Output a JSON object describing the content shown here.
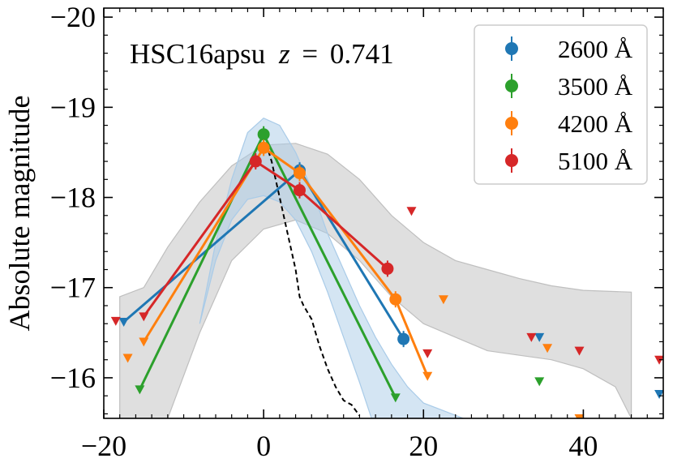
{
  "chart_data": {
    "type": "line",
    "title": "",
    "annotation": {
      "object": "HSC16apsu",
      "z_symbol": "z",
      "equals": "=",
      "z_value": "0.741"
    },
    "xlabel": "",
    "ylabel": "Absolute magnitude",
    "xlim": [
      -20,
      50
    ],
    "ylim": [
      -15.55,
      -20.1
    ],
    "y_inverted": true,
    "xticks": [
      -20,
      0,
      20,
      40
    ],
    "xtick_labels": [
      "−20",
      "0",
      "20",
      "40"
    ],
    "yticks": [
      -16,
      -17,
      -18,
      -19,
      -20
    ],
    "ytick_labels": [
      "−16",
      "−17",
      "−18",
      "−19",
      "−20"
    ],
    "grid": false,
    "legend": {
      "position": "top-right",
      "entries": [
        {
          "label": "2600 Å",
          "color": "#1f77b4"
        },
        {
          "label": "3500 Å",
          "color": "#2ca02c"
        },
        {
          "label": "4200 Å",
          "color": "#ff7f0e"
        },
        {
          "label": "5100 Å",
          "color": "#d62728"
        }
      ]
    },
    "series": [
      {
        "name": "2600 Å",
        "color": "#1f77b4",
        "detections": [
          [
            4.5,
            -18.3
          ],
          [
            17.5,
            -16.43
          ]
        ],
        "line": [
          [
            -17.5,
            -16.62
          ],
          [
            4.5,
            -18.3
          ],
          [
            17.5,
            -16.43
          ]
        ],
        "upper_limits": [
          [
            -17.5,
            -16.62
          ],
          [
            17.5,
            -16.43
          ],
          [
            34.5,
            -16.45
          ],
          [
            49.5,
            -15.82
          ]
        ]
      },
      {
        "name": "3500 Å",
        "color": "#2ca02c",
        "detections": [
          [
            0,
            -18.7
          ]
        ],
        "line": [
          [
            -15.5,
            -15.87
          ],
          [
            0,
            -18.7
          ],
          [
            16.5,
            -15.78
          ]
        ],
        "upper_limits": [
          [
            -15.5,
            -15.87
          ],
          [
            16.5,
            -15.78
          ],
          [
            34.5,
            -15.96
          ]
        ]
      },
      {
        "name": "4200 Å",
        "color": "#ff7f0e",
        "detections": [
          [
            0,
            -18.55
          ],
          [
            4.5,
            -18.27
          ],
          [
            16.5,
            -16.87
          ]
        ],
        "line": [
          [
            -15,
            -16.4
          ],
          [
            0,
            -18.55
          ],
          [
            4.5,
            -18.27
          ],
          [
            16.5,
            -16.87
          ],
          [
            20.5,
            -16.02
          ]
        ],
        "upper_limits": [
          [
            -17,
            -16.22
          ],
          [
            -15,
            -16.4
          ],
          [
            20.5,
            -16.02
          ],
          [
            22.5,
            -16.87
          ],
          [
            35.5,
            -16.33
          ],
          [
            39.5,
            -15.55
          ]
        ]
      },
      {
        "name": "5100 Å",
        "color": "#d62728",
        "detections": [
          [
            -1,
            -18.4
          ],
          [
            4.5,
            -18.08
          ],
          [
            15.5,
            -17.21
          ]
        ],
        "line": [
          [
            -15,
            -16.68
          ],
          [
            -1,
            -18.4
          ],
          [
            4.5,
            -18.08
          ],
          [
            15.5,
            -17.21
          ]
        ],
        "upper_limits": [
          [
            -18.5,
            -16.63
          ],
          [
            -15,
            -16.68
          ],
          [
            18.5,
            -17.85
          ],
          [
            20.5,
            -16.27
          ],
          [
            33.5,
            -16.45
          ],
          [
            39.5,
            -16.3
          ],
          [
            49.5,
            -16.2
          ]
        ]
      }
    ],
    "bands": [
      {
        "color": "#bfbfbf",
        "upper": [
          [
            -18,
            -16.9
          ],
          [
            -15,
            -17.0
          ],
          [
            -12,
            -17.45
          ],
          [
            -8,
            -17.95
          ],
          [
            -4,
            -18.35
          ],
          [
            0,
            -18.58
          ],
          [
            4,
            -18.6
          ],
          [
            8,
            -18.48
          ],
          [
            12,
            -18.2
          ],
          [
            16,
            -17.8
          ],
          [
            20,
            -17.5
          ],
          [
            24,
            -17.3
          ],
          [
            28,
            -17.2
          ],
          [
            32,
            -17.1
          ],
          [
            36,
            -17.02
          ],
          [
            40,
            -16.97
          ],
          [
            46,
            -16.95
          ]
        ],
        "lower": [
          [
            -18,
            -15.55
          ],
          [
            -15,
            -15.55
          ],
          [
            -12,
            -15.55
          ],
          [
            -8,
            -16.5
          ],
          [
            -4,
            -17.3
          ],
          [
            0,
            -17.65
          ],
          [
            4,
            -17.75
          ],
          [
            8,
            -17.6
          ],
          [
            12,
            -17.3
          ],
          [
            16,
            -16.9
          ],
          [
            20,
            -16.6
          ],
          [
            24,
            -16.45
          ],
          [
            28,
            -16.3
          ],
          [
            32,
            -16.25
          ],
          [
            36,
            -16.2
          ],
          [
            40,
            -16.1
          ],
          [
            44,
            -15.9
          ],
          [
            46,
            -15.55
          ]
        ]
      },
      {
        "color": "#a9cbe8",
        "upper": [
          [
            -8,
            -16.6
          ],
          [
            -6,
            -17.5
          ],
          [
            -4,
            -18.2
          ],
          [
            -2,
            -18.72
          ],
          [
            0,
            -18.88
          ],
          [
            2,
            -18.8
          ],
          [
            4,
            -18.5
          ],
          [
            6,
            -18.1
          ],
          [
            8,
            -17.6
          ],
          [
            10,
            -17.2
          ],
          [
            12,
            -16.8
          ],
          [
            14,
            -16.45
          ],
          [
            16,
            -16.15
          ],
          [
            18,
            -15.9
          ],
          [
            20,
            -15.72
          ],
          [
            25,
            -15.55
          ]
        ],
        "lower": [
          [
            -8,
            -16.6
          ],
          [
            -6,
            -17.3
          ],
          [
            -4,
            -17.75
          ],
          [
            -2,
            -17.98
          ],
          [
            0,
            -18.02
          ],
          [
            2,
            -17.95
          ],
          [
            4,
            -17.75
          ],
          [
            6,
            -17.4
          ],
          [
            8,
            -16.95
          ],
          [
            10,
            -16.45
          ],
          [
            12,
            -15.95
          ],
          [
            13.5,
            -15.55
          ]
        ]
      }
    ],
    "model_line": {
      "style": "dashed",
      "color": "#000000",
      "points": [
        [
          0.3,
          -18.6
        ],
        [
          1,
          -18.4
        ],
        [
          2,
          -18.0
        ],
        [
          3,
          -17.6
        ],
        [
          4,
          -17.2
        ],
        [
          4.5,
          -16.9
        ],
        [
          5,
          -16.8
        ],
        [
          6,
          -16.65
        ],
        [
          7,
          -16.35
        ],
        [
          8,
          -16.1
        ],
        [
          9,
          -15.9
        ],
        [
          10,
          -15.75
        ],
        [
          11,
          -15.7
        ],
        [
          12,
          -15.58
        ]
      ]
    }
  }
}
